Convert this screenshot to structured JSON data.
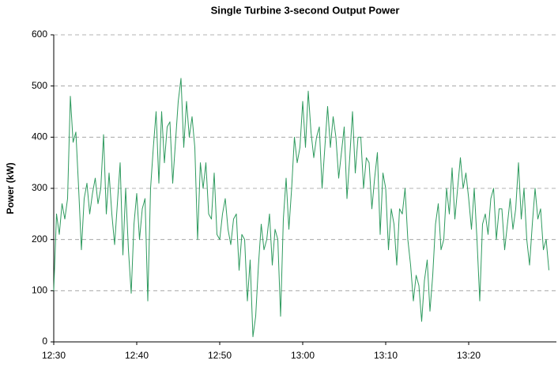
{
  "chart_data": {
    "type": "line",
    "title": "Single Turbine 3-second Output Power",
    "y_label": "Power (kW)",
    "categories": [
      "12:30",
      null,
      null,
      null,
      null,
      null,
      null,
      null,
      null,
      null,
      null,
      null,
      null,
      null,
      null,
      null,
      null,
      null,
      null,
      null,
      null,
      null,
      null,
      null,
      null,
      null,
      null,
      null,
      null,
      null,
      "12:40",
      null,
      null,
      null,
      null,
      null,
      null,
      null,
      null,
      null,
      null,
      null,
      null,
      null,
      null,
      null,
      null,
      null,
      null,
      null,
      null,
      null,
      null,
      null,
      null,
      null,
      null,
      null,
      null,
      null,
      "12:50",
      null,
      null,
      null,
      null,
      null,
      null,
      null,
      null,
      null,
      null,
      null,
      null,
      null,
      null,
      null,
      null,
      null,
      null,
      null,
      null,
      null,
      null,
      null,
      null,
      null,
      null,
      null,
      null,
      null,
      "13:00",
      null,
      null,
      null,
      null,
      null,
      null,
      null,
      null,
      null,
      null,
      null,
      null,
      null,
      null,
      null,
      null,
      null,
      null,
      null,
      null,
      null,
      null,
      null,
      null,
      null,
      null,
      null,
      null,
      null,
      "13:10",
      null,
      null,
      null,
      null,
      null,
      null,
      null,
      null,
      null,
      null,
      null,
      null,
      null,
      null,
      null,
      null,
      null,
      null,
      null,
      null,
      null,
      null,
      null,
      null,
      null,
      null,
      null,
      null,
      null,
      "13:20",
      null,
      null,
      null,
      null,
      null,
      null,
      null,
      null,
      null,
      null,
      null,
      null,
      null,
      null,
      null,
      null,
      null,
      null,
      null,
      null,
      null,
      null,
      null,
      null,
      null,
      null,
      null,
      null,
      null
    ],
    "values": [
      100,
      250,
      210,
      270,
      240,
      280,
      480,
      390,
      410,
      300,
      180,
      280,
      310,
      250,
      290,
      320,
      270,
      300,
      405,
      250,
      330,
      250,
      190,
      270,
      350,
      170,
      300,
      180,
      95,
      230,
      290,
      200,
      260,
      280,
      80,
      300,
      380,
      450,
      310,
      450,
      350,
      420,
      430,
      310,
      390,
      470,
      515,
      380,
      470,
      400,
      440,
      380,
      200,
      350,
      300,
      350,
      250,
      240,
      330,
      210,
      200,
      250,
      280,
      220,
      190,
      240,
      250,
      140,
      210,
      200,
      80,
      160,
      10,
      50,
      150,
      230,
      180,
      200,
      250,
      150,
      220,
      200,
      50,
      240,
      320,
      220,
      300,
      400,
      350,
      380,
      470,
      380,
      490,
      410,
      360,
      400,
      420,
      300,
      380,
      460,
      380,
      440,
      400,
      320,
      370,
      420,
      280,
      360,
      450,
      330,
      400,
      400,
      300,
      360,
      350,
      260,
      320,
      370,
      210,
      330,
      300,
      180,
      260,
      230,
      150,
      260,
      250,
      300,
      200,
      150,
      80,
      130,
      110,
      40,
      120,
      160,
      60,
      130,
      230,
      270,
      180,
      200,
      300,
      250,
      340,
      240,
      300,
      360,
      300,
      330,
      280,
      220,
      300,
      200,
      80,
      230,
      250,
      210,
      280,
      300,
      200,
      260,
      260,
      180,
      230,
      280,
      220,
      260,
      350,
      240,
      300,
      200,
      150,
      230,
      300,
      240,
      260,
      180,
      200,
      140
    ],
    "color": "#2e9a5e",
    "ylim": [
      0,
      600
    ],
    "yticks": [
      0,
      100,
      200,
      300,
      400,
      500,
      600
    ],
    "grid": true
  }
}
